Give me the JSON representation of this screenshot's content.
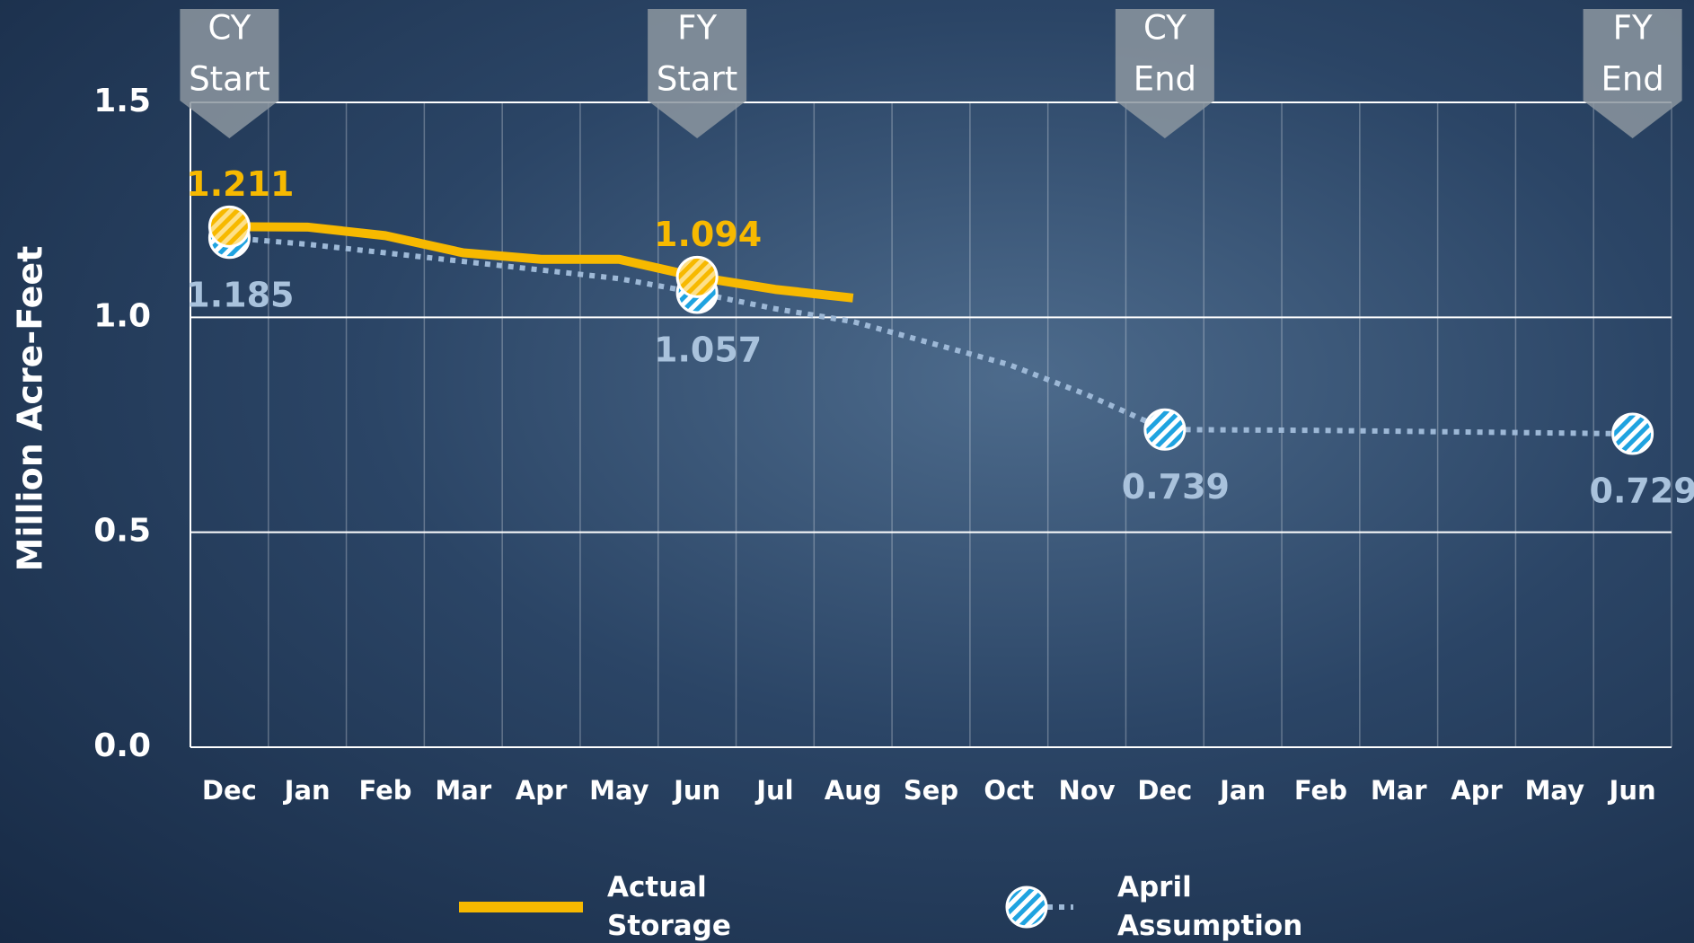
{
  "chart_data": {
    "type": "line",
    "y_label": "Million Acre-Feet",
    "categories": [
      "Dec",
      "Jan",
      "Feb",
      "Mar",
      "Apr",
      "May",
      "Jun",
      "Jul",
      "Aug",
      "Sep",
      "Oct",
      "Nov",
      "Dec",
      "Jan",
      "Feb",
      "Mar",
      "Apr",
      "May",
      "Jun"
    ],
    "period_markers": [
      [
        "CY",
        "Start"
      ],
      null,
      null,
      null,
      null,
      null,
      [
        "FY",
        "Start"
      ],
      null,
      null,
      null,
      null,
      null,
      [
        "CY",
        "End"
      ],
      null,
      null,
      null,
      null,
      null,
      [
        "FY",
        "End"
      ]
    ],
    "series": [
      {
        "name": "Actual Storage",
        "color": "#f7b900",
        "style": "solid",
        "values": [
          1.211,
          1.21,
          1.19,
          1.15,
          1.135,
          1.135,
          1.094,
          1.065,
          1.045,
          null,
          null,
          null,
          null,
          null,
          null,
          null,
          null,
          null,
          null
        ],
        "value_labels": [
          "1.211",
          null,
          null,
          null,
          null,
          null,
          "1.094",
          null,
          null,
          null,
          null,
          null,
          null,
          null,
          null,
          null,
          null,
          null,
          null
        ]
      },
      {
        "name": "April Assumption",
        "color": "#9db8d6",
        "style": "dotted",
        "values": [
          1.185,
          1.17,
          1.15,
          1.13,
          1.11,
          1.09,
          1.057,
          1.02,
          0.99,
          0.94,
          0.89,
          0.82,
          0.739,
          0.738,
          0.737,
          0.735,
          0.733,
          0.731,
          0.729
        ],
        "value_labels": [
          "1.185",
          null,
          null,
          null,
          null,
          null,
          "1.057",
          null,
          null,
          null,
          null,
          null,
          "0.739",
          null,
          null,
          null,
          null,
          null,
          "0.729"
        ]
      }
    ],
    "ylim": [
      0,
      1.5
    ],
    "yticks": [
      {
        "value": 0,
        "label": "0.0"
      },
      {
        "value": 0.5,
        "label": "0.5"
      },
      {
        "value": 1,
        "label": "1.0"
      },
      {
        "value": 1.5,
        "label": "1.5"
      }
    ],
    "grid": true
  }
}
